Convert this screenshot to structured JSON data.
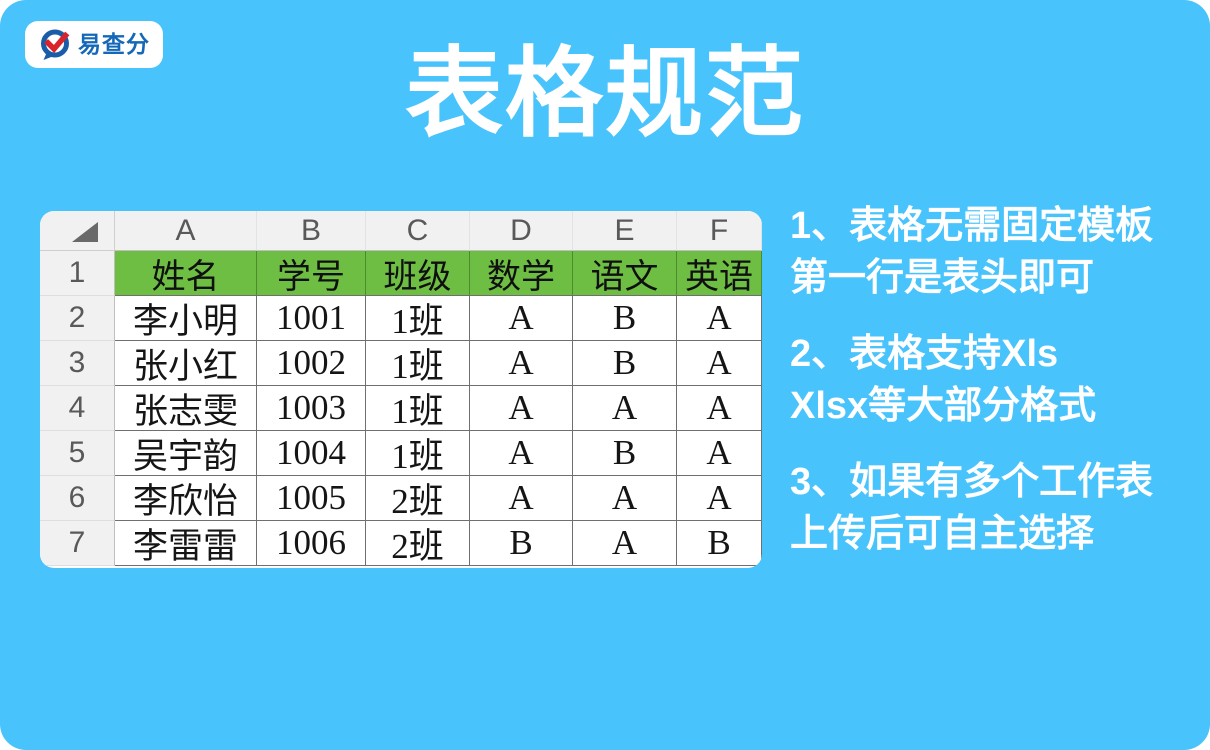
{
  "page": {
    "background_color": "#48C3FB",
    "title": "表格规范"
  },
  "logo": {
    "text": "易查分",
    "icon": "speech-bubble-check-icon",
    "text_color": "#1568B8",
    "bubble_color": "#1A5CA8",
    "check_color": "#D8232A"
  },
  "spreadsheet": {
    "column_letters": [
      "A",
      "B",
      "C",
      "D",
      "E",
      "F"
    ],
    "row_numbers": [
      "1",
      "2",
      "3",
      "4",
      "5",
      "6",
      "7"
    ],
    "header_row": {
      "bg_color": "#6FBE44",
      "cells": [
        "姓名",
        "学号",
        "班级",
        "数学",
        "语文",
        "英语"
      ]
    },
    "rows": [
      [
        "李小明",
        "1001",
        "1班",
        "A",
        "B",
        "A"
      ],
      [
        "张小红",
        "1002",
        "1班",
        "A",
        "B",
        "A"
      ],
      [
        "张志雯",
        "1003",
        "1班",
        "A",
        "A",
        "A"
      ],
      [
        "吴宇韵",
        "1004",
        "1班",
        "A",
        "B",
        "A"
      ],
      [
        "李欣怡",
        "1005",
        "2班",
        "A",
        "A",
        "A"
      ],
      [
        "李雷雷",
        "1006",
        "2班",
        "B",
        "A",
        "B"
      ]
    ]
  },
  "instructions": [
    {
      "lines": [
        "1、表格无需固定模板",
        "第一行是表头即可"
      ]
    },
    {
      "lines": [
        "2、表格支持Xls",
        "Xlsx等大部分格式"
      ]
    },
    {
      "lines": [
        "3、如果有多个工作表",
        "上传后可自主选择"
      ]
    }
  ]
}
